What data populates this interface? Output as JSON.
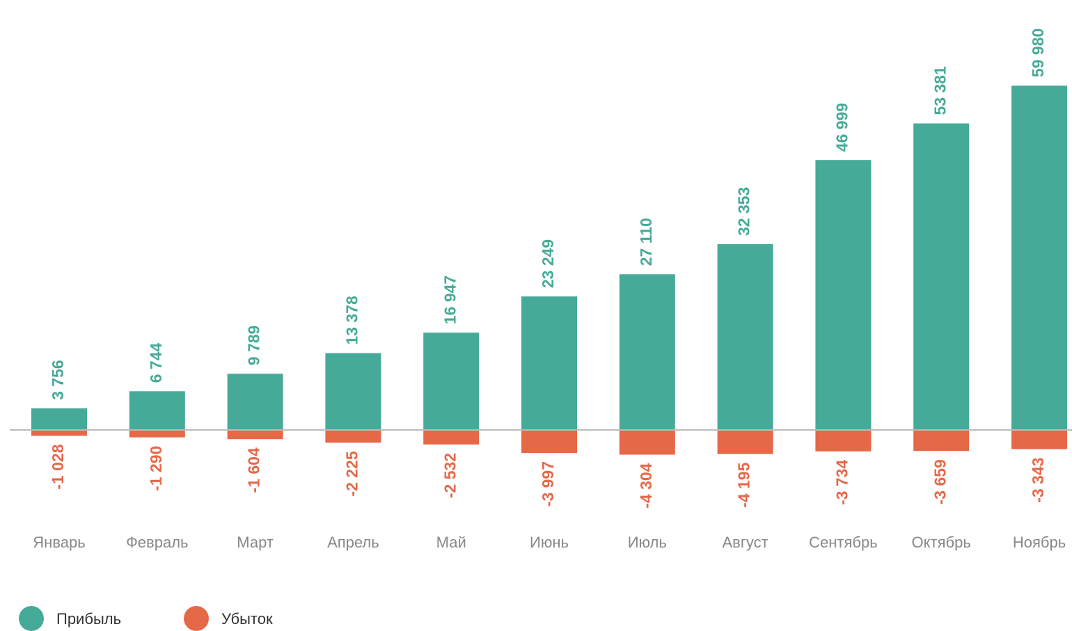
{
  "chart_data": {
    "type": "bar",
    "stacked": true,
    "categories": [
      "Январь",
      "Февраль",
      "Март",
      "Апрель",
      "Май",
      "Июнь",
      "Июль",
      "Август",
      "Сентябрь",
      "Октябрь",
      "Ноябрь"
    ],
    "series": [
      {
        "name": "Прибыль",
        "color": "#46aa98",
        "values": [
          3756,
          6744,
          9789,
          13378,
          16947,
          23249,
          27110,
          32353,
          46999,
          53381,
          59980
        ],
        "value_labels": [
          "3 756",
          "6 744",
          "9 789",
          "13 378",
          "16 947",
          "23 249",
          "27 110",
          "32 353",
          "46 999",
          "53 381",
          "59 980"
        ]
      },
      {
        "name": "Убыток",
        "color": "#e56847",
        "values": [
          -1028,
          -1290,
          -1604,
          -2225,
          -2532,
          -3997,
          -4304,
          -4195,
          -3734,
          -3659,
          -3343
        ],
        "value_labels": [
          "-1 028",
          "-1 290",
          "-1 604",
          "-2 225",
          "-2 532",
          "-3 997",
          "-4 304",
          "-4 195",
          "-3 734",
          "-3 659",
          "-3 343"
        ]
      }
    ],
    "legend": "bottom-left"
  }
}
